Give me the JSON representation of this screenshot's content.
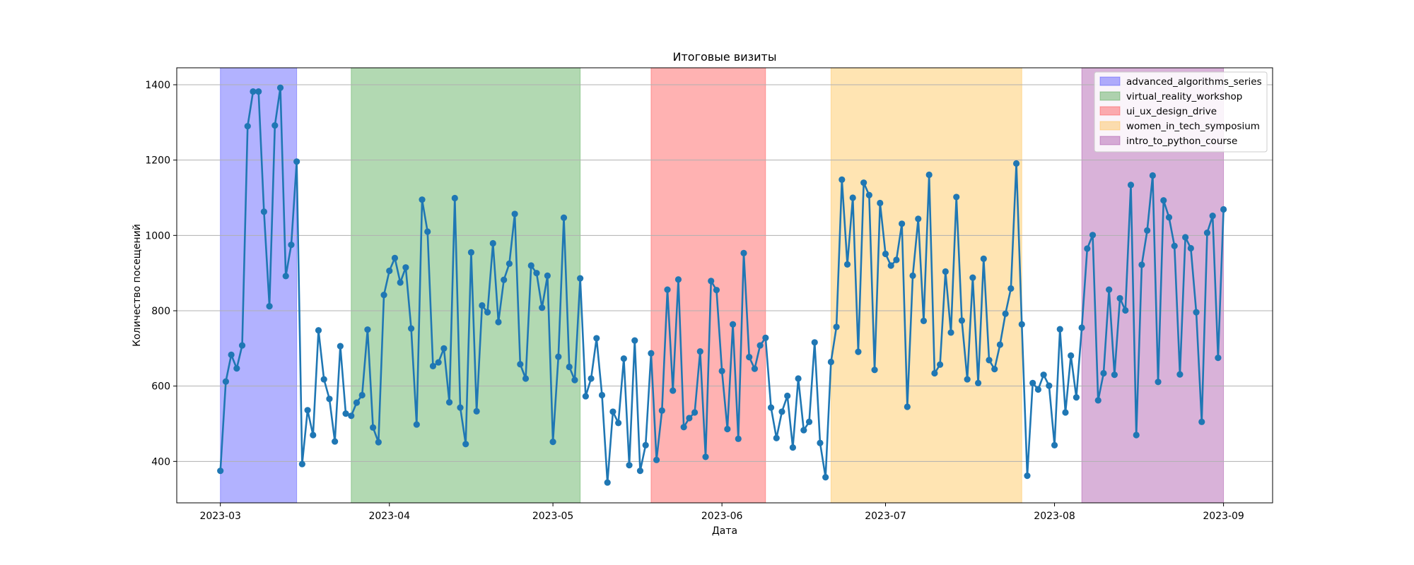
{
  "chart_data": {
    "type": "line",
    "title": "Итоговые визиты",
    "xlabel": "Дата",
    "ylabel": "Количество посещений",
    "xlim": [
      "2023-02-21",
      "2023-09-10"
    ],
    "ylim": [
      290,
      1445
    ],
    "x_ticks": [
      "2023-03",
      "2023-04",
      "2023-05",
      "2023-06",
      "2023-07",
      "2023-08",
      "2023-09"
    ],
    "y_ticks": [
      400,
      600,
      800,
      1000,
      1200,
      1400
    ],
    "grid": "horizontal",
    "legend_position": "top-right",
    "line_color": "#1f77b4",
    "start_date": "2023-03-01",
    "series": [
      {
        "values": [
          375,
          612,
          683,
          647,
          708,
          1290,
          1382,
          1382,
          1063,
          812,
          1292,
          1392,
          892,
          975,
          1196,
          393,
          536,
          470,
          748,
          618,
          566,
          453,
          706,
          527,
          521,
          556,
          576,
          750,
          490,
          451,
          842,
          906,
          940,
          875,
          915,
          753,
          498,
          1095,
          1010,
          653,
          663,
          700,
          557,
          1099,
          543,
          446,
          955,
          533,
          814,
          796,
          979,
          770,
          882,
          925,
          1057,
          658,
          620,
          920,
          900,
          808,
          893,
          452,
          678,
          1047,
          651,
          616,
          886,
          573,
          620,
          727,
          576,
          344,
          532,
          502,
          673,
          390,
          721,
          375,
          443,
          687,
          404,
          535,
          856,
          588,
          883,
          491,
          515,
          530,
          692,
          412,
          879,
          855,
          640,
          486,
          764,
          460,
          953,
          677,
          646,
          708,
          728,
          543,
          462,
          532,
          574,
          437,
          620,
          483,
          505,
          716,
          449,
          358,
          664,
          757,
          1148,
          923,
          1100,
          691,
          1140,
          1107,
          643,
          1086,
          951,
          920,
          935,
          1031,
          545,
          893,
          1044,
          773,
          1161,
          634,
          657,
          904,
          742,
          1102,
          774,
          618,
          888,
          608,
          938,
          669,
          645,
          710,
          792,
          859,
          1191,
          764,
          362,
          608,
          591,
          630,
          601,
          443,
          751,
          530,
          681,
          570,
          755,
          965,
          1001,
          562,
          634,
          856,
          630,
          833,
          801,
          1134,
          470,
          922,
          1013,
          1159,
          611,
          1093,
          1048,
          972,
          631,
          995,
          966,
          796,
          505,
          1007,
          1052,
          675,
          1069
        ]
      }
    ],
    "events": [
      {
        "name": "advanced_algorithms_series",
        "start": "2023-03-01",
        "end": "2023-03-15",
        "color": "#0000ff"
      },
      {
        "name": "virtual_reality_workshop",
        "start": "2023-03-25",
        "end": "2023-05-06",
        "color": "#008000"
      },
      {
        "name": "ui_ux_design_drive",
        "start": "2023-05-19",
        "end": "2023-06-09",
        "color": "#ff0000"
      },
      {
        "name": "women_in_tech_symposium",
        "start": "2023-06-21",
        "end": "2023-07-26",
        "color": "#ffa500"
      },
      {
        "name": "intro_to_python_course",
        "start": "2023-08-06",
        "end": "2023-09-01",
        "color": "#800080"
      }
    ]
  }
}
